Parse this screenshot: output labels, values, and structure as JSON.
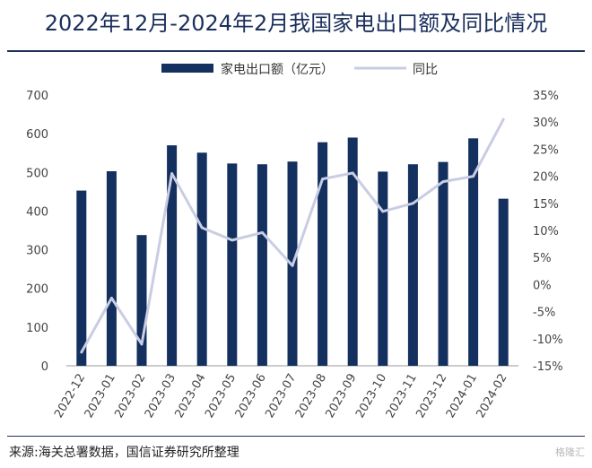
{
  "page": {
    "title": "2022年12月-2024年2月我国家电出口额及同比情况",
    "source": "来源:海关总署数据，国信证券研究所整理",
    "watermark": "格隆汇"
  },
  "chart_data": {
    "type": "bar",
    "title": "2022年12月-2024年2月我国家电出口额及同比情况",
    "categories": [
      "2022-12",
      "2023-01",
      "2023-02",
      "2023-03",
      "2023-04",
      "2023-05",
      "2023-06",
      "2023-07",
      "2023-08",
      "2023-09",
      "2023-10",
      "2023-11",
      "2023-12",
      "2024-01",
      "2024-02"
    ],
    "series": [
      {
        "name": "家电出口额（亿元）",
        "type": "bar",
        "axis": "left",
        "color": "#13305f",
        "values": [
          453,
          503,
          338,
          570,
          551,
          523,
          521,
          528,
          578,
          590,
          502,
          521,
          527,
          588,
          432
        ]
      },
      {
        "name": "同比",
        "type": "line",
        "axis": "right",
        "color": "#c9cde3",
        "values": [
          -12.5,
          -2.5,
          -11.0,
          20.5,
          10.5,
          8.2,
          9.6,
          3.5,
          19.5,
          20.6,
          13.5,
          15.0,
          19.0,
          20.0,
          30.5
        ]
      }
    ],
    "y_left": {
      "min": 0,
      "max": 700,
      "ticks": [
        0,
        100,
        200,
        300,
        400,
        500,
        600,
        700
      ]
    },
    "y_right": {
      "min": -15,
      "max": 35,
      "ticks": [
        "-15%",
        "-10%",
        "-5%",
        "0%",
        "5%",
        "10%",
        "15%",
        "20%",
        "25%",
        "30%",
        "35%"
      ]
    },
    "grid": false,
    "legend_position": "top"
  }
}
